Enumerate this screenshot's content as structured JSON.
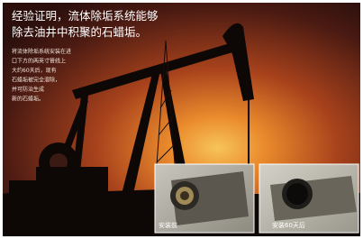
{
  "headline": {
    "lines": [
      "经验证明，流体除垢系统能够",
      "除去油井中积聚的石蜡垢。"
    ]
  },
  "body": {
    "lines": [
      "将流体除垢系统安装在进",
      "口下方的两英寸管线上",
      "大约60天后，现有",
      "石蜡垢被完全溶除，",
      "并可防治生成",
      "新的石蜡垢。"
    ]
  },
  "photos": [
    {
      "caption": "安装前"
    },
    {
      "caption": "安装60天后"
    }
  ]
}
